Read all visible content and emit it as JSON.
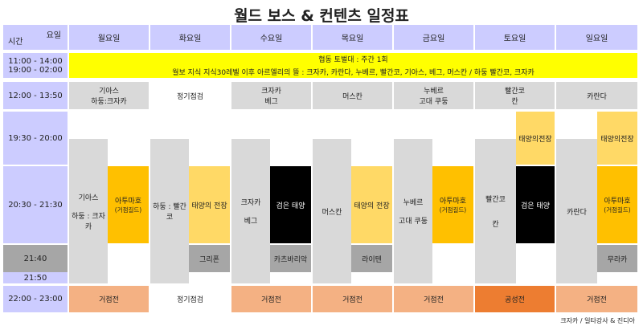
{
  "title": "월드 보스 & 컨텐츠 일정표",
  "header": {
    "day_label": "요일",
    "time_label": "시간",
    "days": [
      "월요일",
      "화요일",
      "수요일",
      "목요일",
      "금요일",
      "토요일",
      "일요일"
    ]
  },
  "times": {
    "t1": "11:00 - 14:00",
    "t2": "19:00 - 02:00",
    "t3": "12:00 - 13:50",
    "t4": "19:30 - 20:00",
    "t5": "20:30 - 21:30",
    "t6": "21:40",
    "t7": "21:50",
    "t8": "22:00 - 23:00"
  },
  "banner": {
    "line1": "협동 토벌대 : 주간 1회",
    "line2": "월보 지식 지식30레벨 이후 아르엘리의 뜰 : 크자카, 카란다, 누베르, 빨간코, 기아스, 베그, 머스칸 / 하둥 빨간코, 크자카"
  },
  "noon": {
    "mon": [
      "기아스",
      "하둥:크자카"
    ],
    "tue": "정기점검",
    "wed": [
      "크자카",
      "베그"
    ],
    "thu": "머스칸",
    "fri": [
      "누베르",
      "고대 쿠둥"
    ],
    "sat": [
      "빨간코",
      "칸"
    ],
    "sun": "카란다"
  },
  "evening": {
    "mon": {
      "gray": [
        "기아스",
        "하둥 : 크자카"
      ],
      "right": "아투마호",
      "right_sub": "(거점길드)"
    },
    "tue": {
      "gray": "하둥 : 빨간코",
      "right": "태양의 전장",
      "extra": "그리폰"
    },
    "wed": {
      "gray": [
        "크자카",
        "베그"
      ],
      "right": "검은 태양",
      "extra": "카츠바리악"
    },
    "thu": {
      "gray": "머스칸",
      "right": "태양의 전장",
      "extra": "라이텐"
    },
    "fri": {
      "gray": [
        "누베르",
        "고대 쿠둥"
      ],
      "right": "아투마호",
      "right_sub": "(거점길드)"
    },
    "sat": {
      "gray": [
        "빨간코",
        "칸"
      ],
      "right": "검은 태양",
      "top": "태양의전장"
    },
    "sun": {
      "gray": "카란다",
      "right": "아투마호",
      "right_sub": "(거점길드)",
      "top": "태양의전장",
      "extra": "무라카"
    }
  },
  "night": {
    "mon": "거점전",
    "tue": "정기점검",
    "wed": "거점전",
    "thu": "거점전",
    "fri": "거점전",
    "sat": "공성전",
    "sun": "거점전"
  },
  "footer": "크자카 / 일타강사 & 진디아"
}
